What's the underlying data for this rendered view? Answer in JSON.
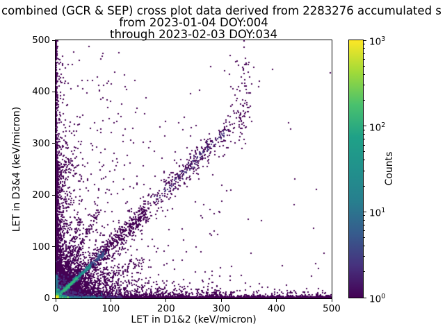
{
  "figure": {
    "title_line1": "combined (GCR & SEP) cross plot data derived from 2283276 accumulated s",
    "title_line2": "from 2023-01-04 DOY:004",
    "title_line3": "through 2023-02-03 DOY:034"
  },
  "axes": {
    "x": {
      "label": "LET in D1&2 (keV/micron)",
      "tick_labels": [
        "0",
        "100",
        "200",
        "300",
        "400",
        "500"
      ],
      "lim": [
        0,
        500
      ]
    },
    "y": {
      "label": "LET in D3&4 (keV/micron)",
      "tick_labels": [
        "0",
        "100",
        "200",
        "300",
        "400",
        "500"
      ],
      "lim": [
        0,
        500
      ]
    }
  },
  "colorbar": {
    "label": "Counts",
    "scale": "log",
    "lim": [
      1,
      1000
    ],
    "major_ticks": [
      {
        "base": "10",
        "exp": "0"
      },
      {
        "base": "10",
        "exp": "1"
      },
      {
        "base": "10",
        "exp": "2"
      },
      {
        "base": "10",
        "exp": "3"
      }
    ],
    "gradient_stops": [
      "#440154",
      "#46327e",
      "#365c8d",
      "#277f8e",
      "#21918c",
      "#1fa187",
      "#4ac16d",
      "#a0da39",
      "#fde725"
    ]
  },
  "chart_data": {
    "type": "heatmap",
    "title": "combined (GCR & SEP) cross plot data derived from 2283276 accumulated s",
    "subtitle": [
      "from 2023-01-04 DOY:004",
      "through 2023-02-03 DOY:034"
    ],
    "xlabel": "LET in D1&2 (keV/micron)",
    "ylabel": "LET in D3&4 (keV/micron)",
    "xlim": [
      0,
      500
    ],
    "ylim": [
      0,
      500
    ],
    "colormap": "viridis",
    "norm": "log",
    "counts_range": [
      1,
      1000
    ],
    "legend_position": "right-colorbar",
    "grid": false,
    "features": [
      "bright yellow/green hotspot of ~100-1000 counts at origin (0-10, 0-10)",
      "bright teal diagonal ridge y=x from origin to ~(62,62)",
      "dense dark-purple cloud around origin decaying exponentially to ~(110,110)",
      "solid 1-count band hugging y=0 across full x range, teal/green for x<90",
      "dense 1-count band hugging x=0 up to y~280, sparser to y~500",
      "secondary diagonal cluster along y~1.05x from (130,130) to (345,345)",
      "sparse vertical trail near x~330-350 up to y~470",
      "isolated single-count pixels scattered over the plane, denser at left"
    ],
    "point_groups": [
      {
        "kind": "uniform",
        "n": 60,
        "x0": 0,
        "x1": 500,
        "y0": 0,
        "y1": 490,
        "color": "#440154"
      },
      {
        "kind": "uniform",
        "n": 120,
        "x0": 0,
        "x1": 150,
        "y0": 0,
        "y1": 480,
        "color": "#440154"
      },
      {
        "kind": "uniform",
        "n": 100,
        "x0": 80,
        "x1": 320,
        "y0": 0,
        "y1": 360,
        "color": "#440154"
      },
      {
        "kind": "hband",
        "n": 2400,
        "x0": 0,
        "x1": 500,
        "yscale": 1.2,
        "color": "#440154"
      },
      {
        "kind": "hband",
        "n": 700,
        "x0": 0,
        "x1": 300,
        "yscale": 10,
        "color": "#440154"
      },
      {
        "kind": "hband",
        "n": 260,
        "x0": 280,
        "x1": 500,
        "yscale": 6,
        "color": "#440154"
      },
      {
        "kind": "vband",
        "n": 1300,
        "y0": 0,
        "y1": 280,
        "xscale": 1.2,
        "color": "#440154"
      },
      {
        "kind": "vband",
        "n": 300,
        "y0": 280,
        "y1": 500,
        "xscale": 1.0,
        "color": "#440154"
      },
      {
        "kind": "vband",
        "n": 600,
        "y0": 0,
        "y1": 260,
        "xscale": 10,
        "color": "#440154"
      },
      {
        "kind": "vband",
        "n": 120,
        "y0": 260,
        "y1": 470,
        "xscale": 7,
        "color": "#440154"
      },
      {
        "kind": "exp",
        "n": 2600,
        "sx": 20,
        "sy": 20,
        "color": "#440154"
      },
      {
        "kind": "exp",
        "n": 1300,
        "sx": 45,
        "sy": 45,
        "color": "#440154"
      },
      {
        "kind": "diag",
        "n": 700,
        "x0": 0,
        "x1": 165,
        "slope": 1.0,
        "spread": 11,
        "color": "#440154"
      },
      {
        "kind": "diag",
        "n": 130,
        "x0": 0,
        "x1": 80,
        "slope": 2.2,
        "spread": 5,
        "color": "#440154"
      },
      {
        "kind": "diag",
        "n": 90,
        "x0": 0,
        "x1": 45,
        "slope": 3.4,
        "spread": 4,
        "color": "#440154"
      },
      {
        "kind": "diag",
        "n": 170,
        "x0": 0,
        "x1": 160,
        "slope": 0.45,
        "spread": 7,
        "color": "#440154"
      },
      {
        "kind": "diag",
        "n": 330,
        "x0": 130,
        "x1": 345,
        "slope": 1.05,
        "spread": 13,
        "tmean": 0.5,
        "tsd": 0.28,
        "color": "#440154"
      },
      {
        "kind": "diag",
        "n": 90,
        "x0": 180,
        "x1": 310,
        "slope": 1.05,
        "spread": 5,
        "color": "#46327e"
      },
      {
        "kind": "gauss",
        "n": 45,
        "cx": 342,
        "cy": 420,
        "sx": 10,
        "sy": 40,
        "color": "#440154"
      },
      {
        "kind": "gauss",
        "n": 40,
        "cx": 330,
        "cy": 345,
        "sx": 12,
        "sy": 25,
        "color": "#440154"
      },
      {
        "kind": "gauss",
        "n": 90,
        "cx": 25,
        "cy": 280,
        "sx": 18,
        "sy": 45,
        "color": "#440154"
      },
      {
        "kind": "exp",
        "n": 500,
        "sx": 12,
        "sy": 12,
        "color": "#472d7b"
      },
      {
        "kind": "hband",
        "n": 250,
        "x0": 0,
        "x1": 120,
        "yscale": 2,
        "color": "#472d7b"
      },
      {
        "kind": "diag",
        "n": 200,
        "x0": 0,
        "x1": 90,
        "slope": 1.0,
        "spread": 3,
        "color": "#3b528b"
      },
      {
        "kind": "vband",
        "n": 150,
        "y0": 0,
        "y1": 45,
        "xscale": 1.2,
        "color": "#2c728e"
      },
      {
        "kind": "hband",
        "n": 200,
        "x0": 0,
        "x1": 85,
        "yscale": 1.2,
        "color": "#2c728e"
      },
      {
        "kind": "diag",
        "n": 260,
        "x0": 1,
        "x1": 62,
        "slope": 1.0,
        "spread": 1.6,
        "color": "#21918c"
      },
      {
        "kind": "diag",
        "n": 130,
        "x0": 2,
        "x1": 40,
        "slope": 1.0,
        "spread": 0.9,
        "color": "#35b779"
      },
      {
        "kind": "hband",
        "n": 90,
        "x0": 0,
        "x1": 24,
        "yscale": 0.9,
        "color": "#5ec962"
      },
      {
        "kind": "exp",
        "n": 160,
        "sx": 4.5,
        "sy": 4.5,
        "color": "#21918c"
      },
      {
        "kind": "exp",
        "n": 70,
        "sx": 2.5,
        "sy": 2.5,
        "color": "#35b779"
      },
      {
        "kind": "block",
        "x": 0,
        "y": 0,
        "w": 6,
        "h": 6,
        "color": "#d8e219"
      },
      {
        "kind": "block",
        "x": 0,
        "y": 0,
        "w": 3,
        "h": 3,
        "color": "#fde725"
      }
    ]
  }
}
